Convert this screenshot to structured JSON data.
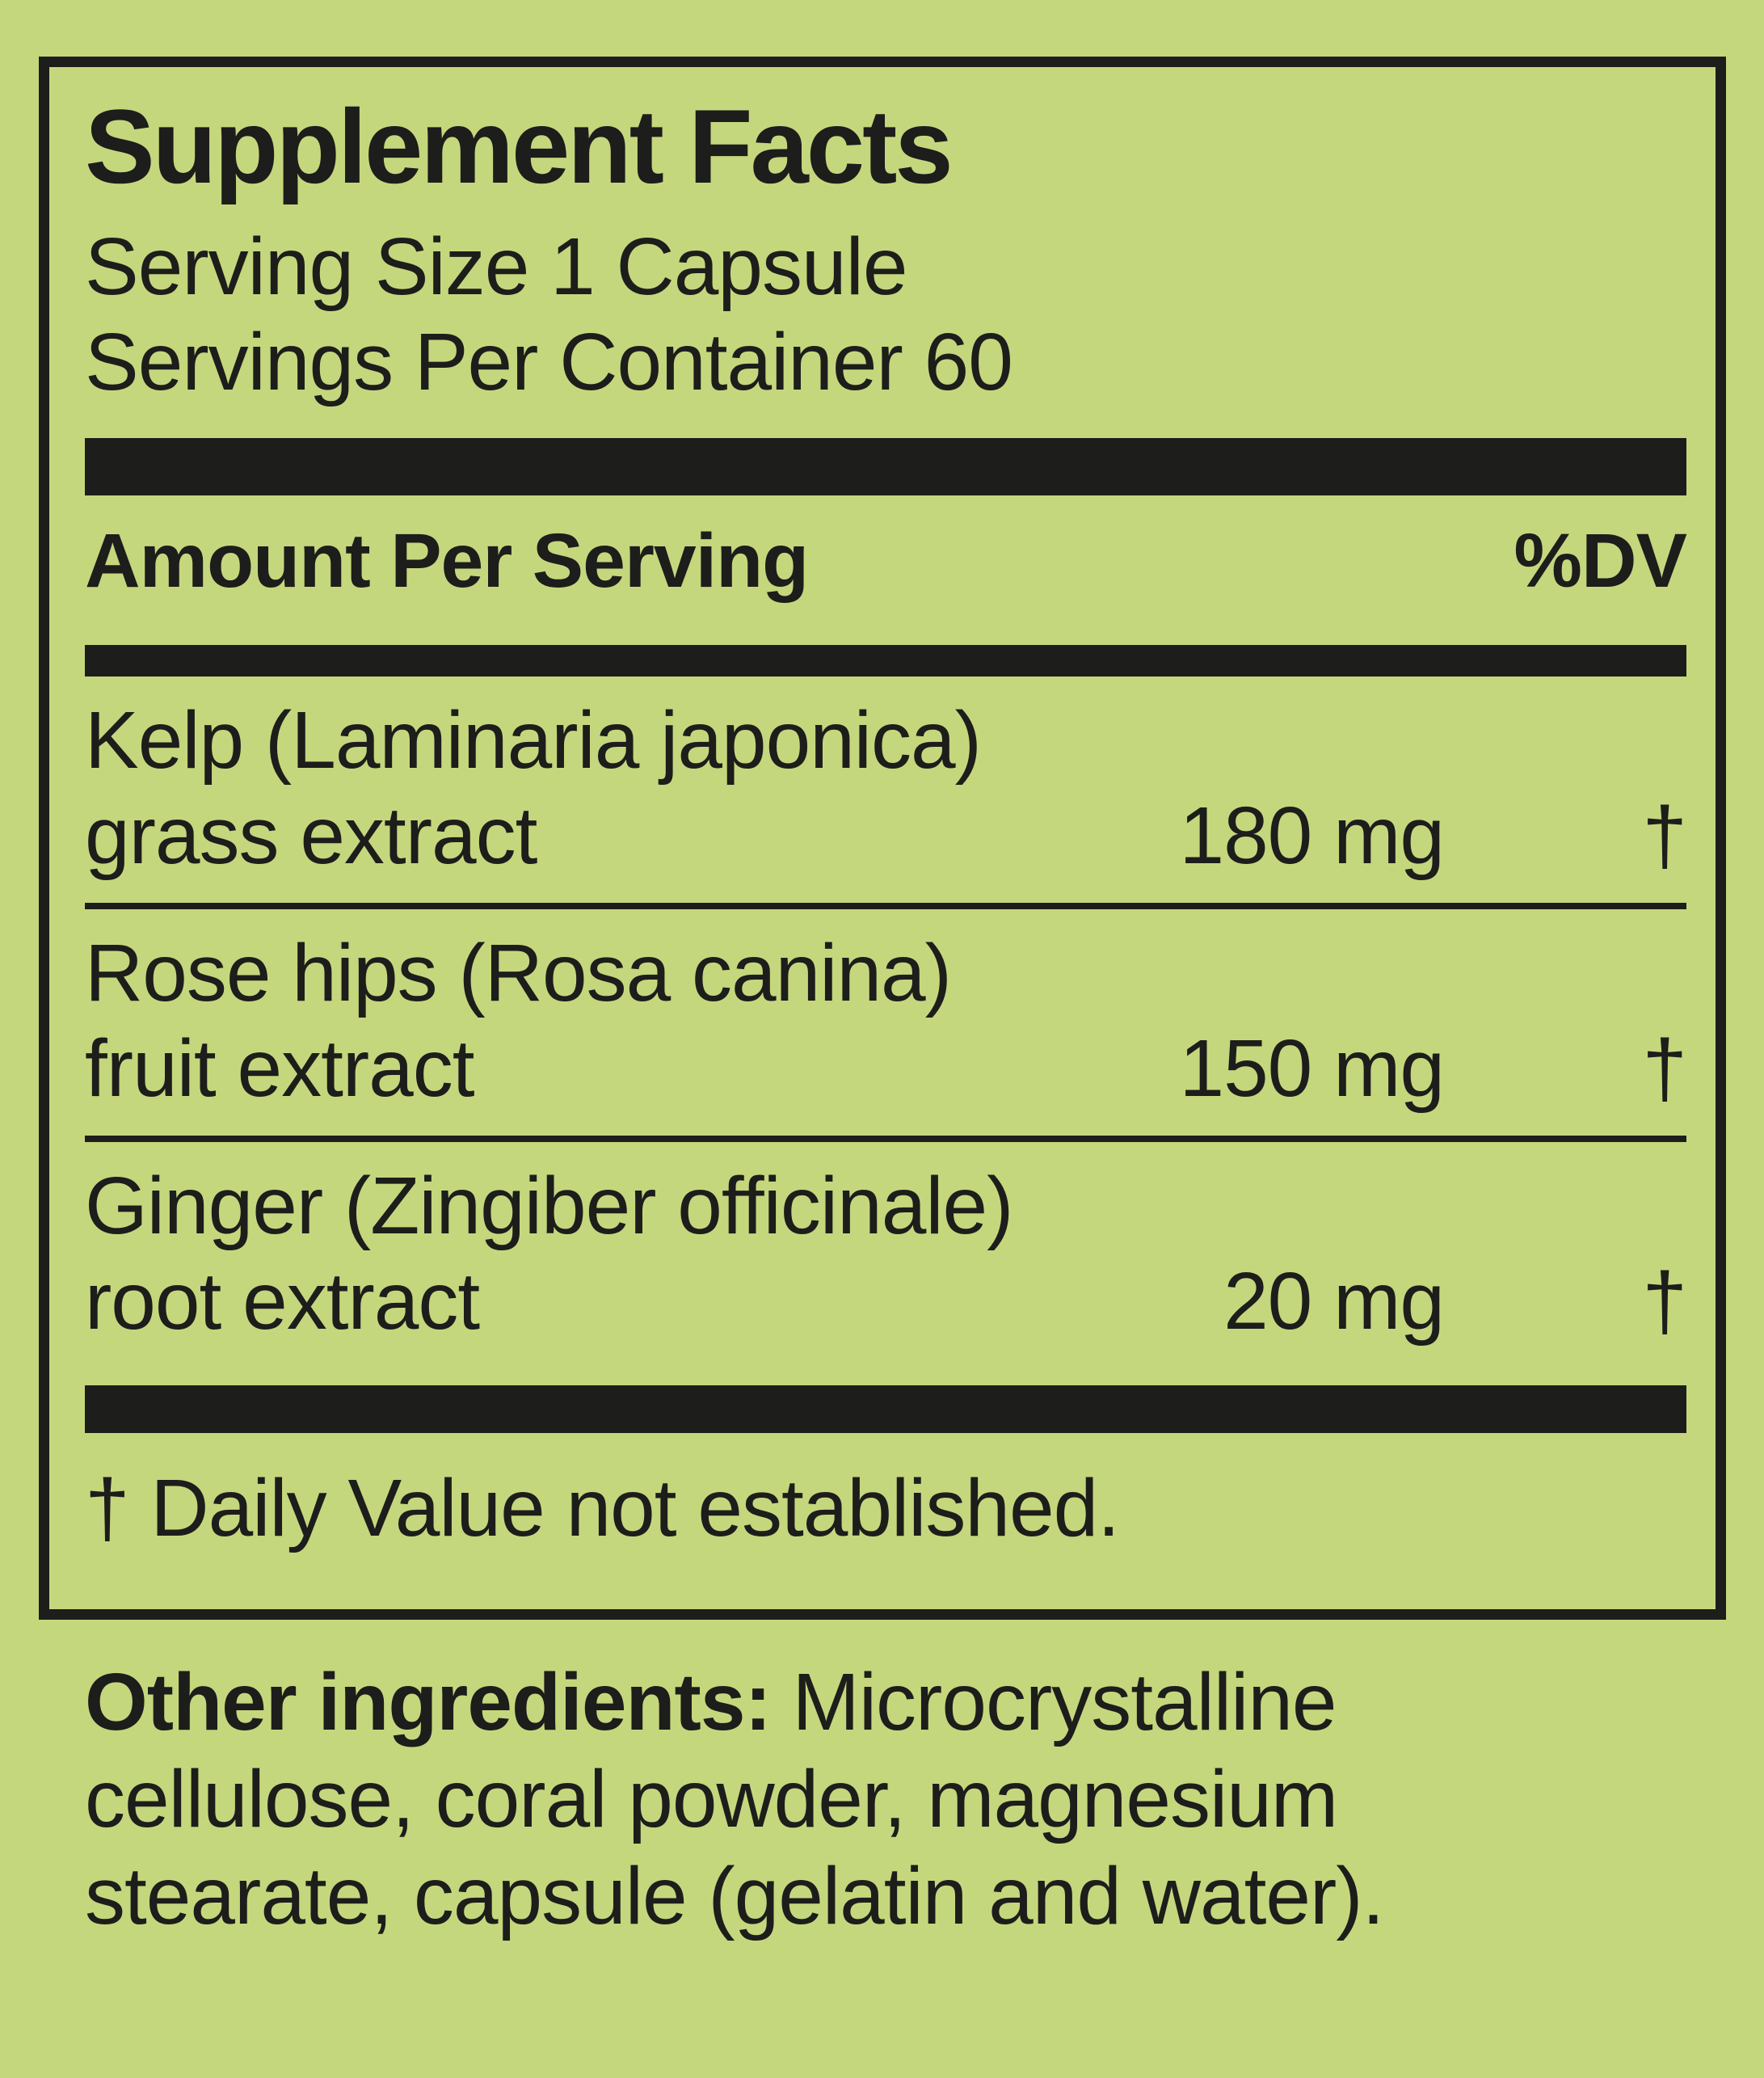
{
  "label": {
    "title": "Supplement Facts",
    "serving_size": "Serving Size 1 Capsule",
    "servings_per_container": "Servings Per Container 60",
    "columns": {
      "amount_header": "Amount Per Serving",
      "dv_header": "%DV"
    },
    "ingredients": [
      {
        "line1": "Kelp (Laminaria japonica)",
        "line2": "grass extract",
        "amount": "180 mg",
        "dv": "†"
      },
      {
        "line1": "Rose hips (Rosa canina)",
        "line2": "fruit extract",
        "amount": "150 mg",
        "dv": "†"
      },
      {
        "line1": "Ginger (Zingiber officinale)",
        "line2": "root extract",
        "amount": "20 mg",
        "dv": "†"
      }
    ],
    "footnote": "† Daily Value not established.",
    "other_ingredients": {
      "label": "Other ingredients:",
      "line1_rest": " Microcrystalline",
      "line2": "cellulose, coral powder, magnesium",
      "line3": "stearate, capsule (gelatin and water)."
    },
    "colors": {
      "background": "#c5d77d",
      "ink": "#1d1d1b"
    }
  }
}
